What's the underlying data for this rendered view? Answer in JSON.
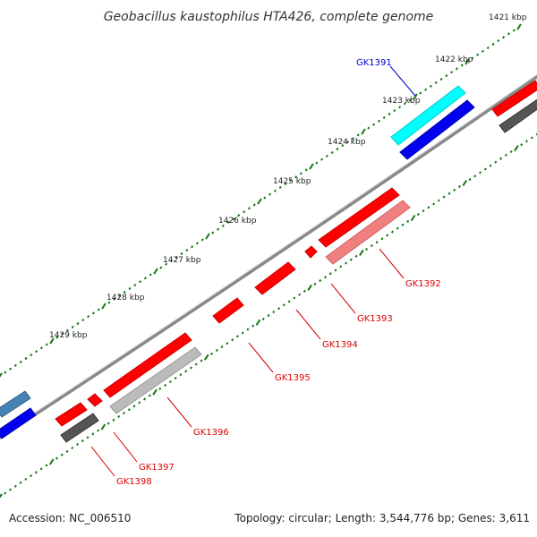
{
  "title": "Geobacillus kaustophilus HTA426, complete genome",
  "footer": {
    "accession": "Accession: NC_006510",
    "summary": "Topology: circular; Length: 3,544,776 bp; Genes: 3,611"
  },
  "scale_labels": [
    "1421 kbp",
    "1422 kbp",
    "1423 kbp",
    "1424 kbp",
    "1425 kbp",
    "1426 kbp",
    "1427 kbp",
    "1428 kbp",
    "1429 kbp"
  ],
  "genes": [
    {
      "label": "GK1391",
      "color": "#0000cc"
    },
    {
      "label": "GK1392",
      "color": "#dd0000"
    },
    {
      "label": "GK1393",
      "color": "#dd0000"
    },
    {
      "label": "GK1394",
      "color": "#dd0000"
    },
    {
      "label": "GK1395",
      "color": "#dd0000"
    },
    {
      "label": "GK1396",
      "color": "#dd0000"
    },
    {
      "label": "GK1397",
      "color": "#dd0000"
    },
    {
      "label": "GK1398",
      "color": "#dd0000"
    }
  ],
  "colors": {
    "backbone": "#888888",
    "tick": "#117711",
    "red_gene": "#ff0000",
    "pink_gene": "#f08080",
    "cyan_gene": "#00ffff",
    "blue_gene": "#0000ee",
    "gray_gene": "#bbbbbb",
    "dark_gray_gene": "#555555",
    "steel_blue_gene": "#4682b4"
  }
}
